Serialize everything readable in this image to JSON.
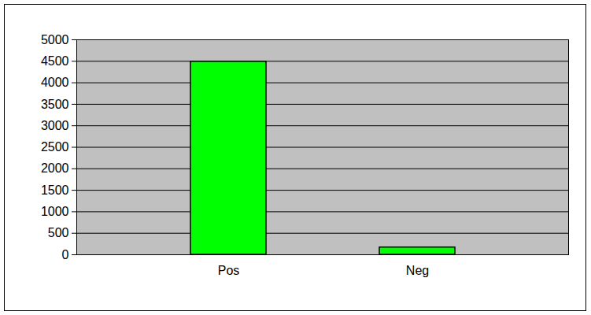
{
  "chart_data": {
    "type": "bar",
    "categories": [
      "Pos",
      "Neg"
    ],
    "values": [
      4490,
      170
    ],
    "color": "#00ff00",
    "ylim": [
      0,
      5000
    ],
    "yticks": [
      0,
      500,
      1000,
      1500,
      2000,
      2500,
      3000,
      3500,
      4000,
      4500,
      5000
    ],
    "grid": true
  }
}
